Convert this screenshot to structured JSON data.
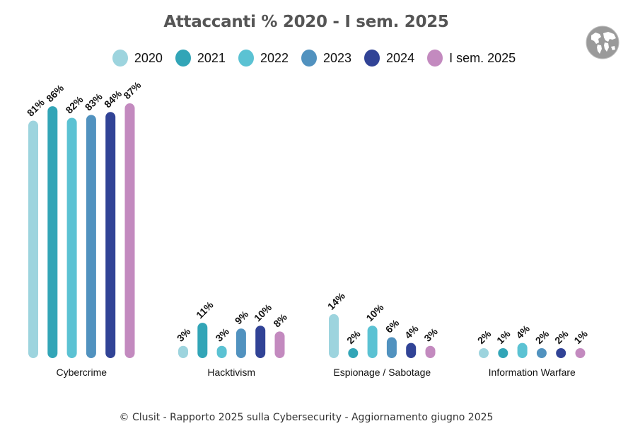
{
  "title": "Attaccanti % 2020 - I sem. 2025",
  "footer": "© Clusit - Rapporto 2025 sulla Cybersecurity - Aggiornamento giugno 2025",
  "logo_icon": "globe-icon",
  "legend": [
    {
      "label": "2020",
      "color": "#9dd4de"
    },
    {
      "label": "2021",
      "color": "#32a5b7"
    },
    {
      "label": "2022",
      "color": "#5bc2d3"
    },
    {
      "label": "2023",
      "color": "#5192bf"
    },
    {
      "label": "2024",
      "color": "#314396"
    },
    {
      "label": "I sem. 2025",
      "color": "#c38abf"
    }
  ],
  "chart_data": {
    "type": "bar",
    "title": "Attaccanti % 2020 - I sem. 2025",
    "xlabel": "",
    "ylabel": "",
    "ylim": [
      0,
      100
    ],
    "grid": false,
    "legend_position": "top",
    "categories": [
      "Cybercrime",
      "Hacktivism",
      "Espionage / Sabotage",
      "Information Warfare"
    ],
    "series": [
      {
        "name": "2020",
        "color": "#9dd4de",
        "values": [
          81,
          3,
          14,
          2
        ]
      },
      {
        "name": "2021",
        "color": "#32a5b7",
        "values": [
          86,
          11,
          2,
          1
        ]
      },
      {
        "name": "2022",
        "color": "#5bc2d3",
        "values": [
          82,
          3,
          10,
          4
        ]
      },
      {
        "name": "2023",
        "color": "#5192bf",
        "values": [
          83,
          9,
          6,
          2
        ]
      },
      {
        "name": "2024",
        "color": "#314396",
        "values": [
          84,
          10,
          4,
          2
        ]
      },
      {
        "name": "I sem. 2025",
        "color": "#c38abf",
        "values": [
          87,
          8,
          3,
          1
        ]
      }
    ],
    "value_suffix": "%"
  }
}
